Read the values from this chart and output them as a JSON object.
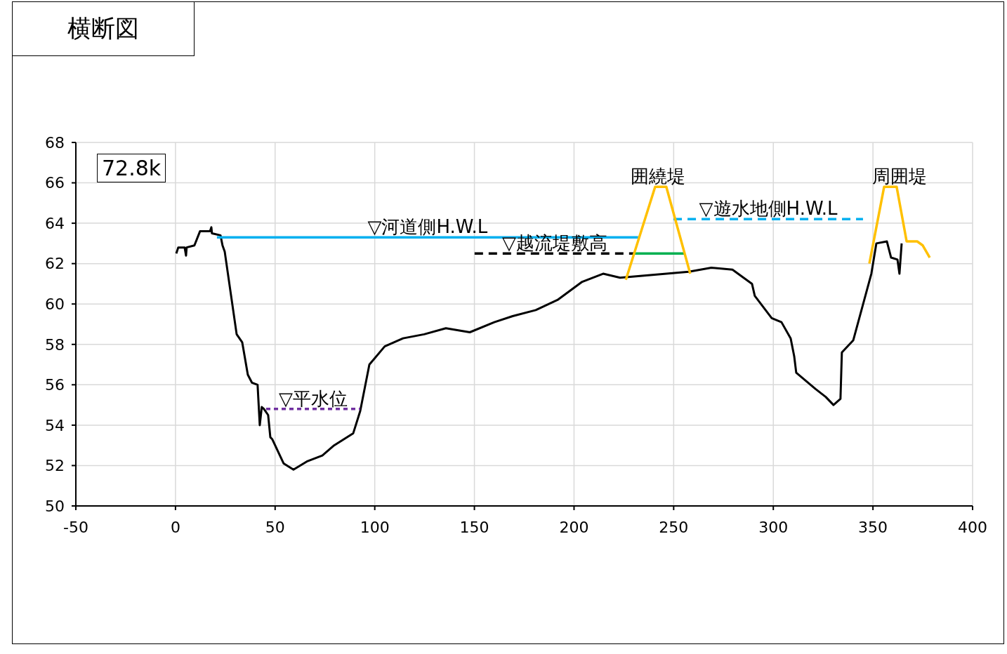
{
  "chart_data": {
    "type": "line",
    "title": "横断図",
    "annotations": [
      "72.8k"
    ],
    "xlim": [
      -50,
      400
    ],
    "xticks": [
      -50,
      0,
      50,
      100,
      150,
      200,
      250,
      300,
      350,
      400
    ],
    "ylim": [
      50,
      68
    ],
    "yticks": [
      50,
      52,
      54,
      56,
      58,
      60,
      62,
      64,
      66,
      68
    ],
    "grid": true,
    "legend": false,
    "marker": "none",
    "series": [
      {
        "color": "#000000",
        "line_style": "solid",
        "x": [
          0.4,
          1.4,
          4.6,
          5.3,
          5.6,
          9.5,
          12.3,
          17.3,
          18.0,
          18.3,
          22.6,
          23.6,
          24.7,
          30.7,
          33.5,
          36.3,
          38.4,
          41.2,
          42.3,
          43.3,
          44.4,
          46.5,
          47.6,
          48.6,
          54.3,
          59.2,
          65.9,
          73.7,
          79.6,
          89.2,
          92.7,
          97.3,
          105.0,
          114.2,
          124.8,
          135.7,
          147.7,
          160.0,
          169.2,
          180.8,
          191.7,
          204.1,
          214.6,
          223.1,
          257.6,
          268.9,
          279.5,
          289.3,
          290.7,
          299.2,
          304.1,
          308.7,
          310.5,
          311.5,
          321.1,
          326.3,
          330.2,
          333.7,
          334.4,
          340.1,
          349.2,
          351.7,
          357.0,
          359.1,
          362.3,
          363.3,
          364.4
        ],
        "values": [
          62.5,
          62.8,
          62.8,
          62.4,
          62.8,
          62.9,
          63.6,
          63.6,
          63.8,
          63.5,
          63.4,
          62.9,
          62.6,
          58.5,
          58.1,
          56.5,
          56.1,
          56.0,
          54.0,
          54.9,
          54.8,
          54.5,
          53.4,
          53.3,
          52.1,
          51.8,
          52.2,
          52.5,
          53.0,
          53.6,
          54.7,
          57.0,
          57.9,
          58.3,
          58.5,
          58.8,
          58.6,
          59.1,
          59.4,
          59.7,
          60.2,
          61.1,
          61.5,
          61.3,
          61.6,
          61.8,
          61.7,
          61.0,
          60.4,
          59.3,
          59.1,
          58.3,
          57.4,
          56.6,
          55.8,
          55.4,
          55.0,
          55.3,
          57.6,
          58.2,
          61.5,
          63.0,
          63.1,
          62.3,
          62.2,
          61.5,
          63.0
        ]
      },
      {
        "name": "▽河道側H.W.L",
        "color": "#00b0f0",
        "line_style": "solid",
        "x": [
          20.8,
          232.2
        ],
        "values": [
          63.3,
          63.3
        ]
      },
      {
        "name": "▽越流堤敷高",
        "color": "#000000",
        "line_style": "dashed",
        "x": [
          150.1,
          230.5
        ],
        "values": [
          62.5,
          62.5
        ]
      },
      {
        "color": "#00b050",
        "line_style": "solid",
        "x": [
          230.5,
          255.2
        ],
        "values": [
          62.5,
          62.5
        ]
      },
      {
        "name": "▽遊水地側H.W.L",
        "color": "#00b0f0",
        "line_style": "dashed",
        "x": [
          249.9,
          345.0
        ],
        "values": [
          64.2,
          64.2
        ]
      },
      {
        "name": "▽平水位",
        "color": "#7030a0",
        "line_style": "dotted",
        "x": [
          45.5,
          92.7
        ],
        "values": [
          54.8,
          54.8
        ]
      },
      {
        "name": "囲繞堤",
        "color": "#ffc000",
        "line_style": "solid",
        "x": [
          226.0,
          240.7,
          246.3,
          258.3
        ],
        "values": [
          61.2,
          65.8,
          65.8,
          61.5
        ]
      },
      {
        "name": "周囲堤",
        "color": "#ffc000",
        "line_style": "solid",
        "x": [
          348.2,
          355.6,
          361.9,
          366.9,
          372.2,
          375.0,
          378.5
        ],
        "values": [
          62.0,
          65.8,
          65.8,
          63.1,
          63.1,
          62.9,
          62.3
        ]
      }
    ]
  }
}
